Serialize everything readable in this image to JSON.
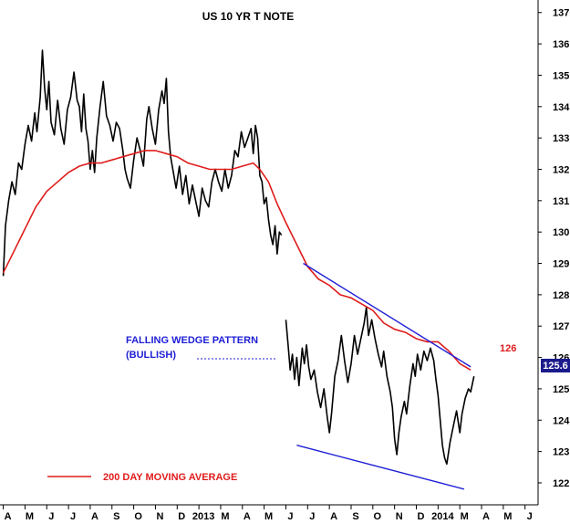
{
  "chart_data": {
    "type": "line",
    "title": "US 10 YR T NOTE",
    "y_ticks": [
      122,
      123,
      124,
      125,
      126,
      127,
      128,
      129,
      130,
      131,
      132,
      133,
      134,
      135,
      136,
      137
    ],
    "ylim": [
      121.3,
      137.4
    ],
    "x_ticks": [
      "A",
      "M",
      "J",
      "J",
      "A",
      "S",
      "O",
      "N",
      "D",
      "2013",
      "M",
      "A",
      "M",
      "J",
      "J",
      "A",
      "S",
      "O",
      "N",
      "D",
      "2014",
      "M",
      "A",
      "M",
      "J"
    ],
    "x_tick_values": [
      0,
      1,
      2,
      3,
      4,
      5,
      6,
      7,
      8,
      9,
      10,
      11,
      12,
      13,
      14,
      15,
      16,
      17,
      18,
      19,
      20,
      21,
      22,
      23,
      24
    ],
    "xlim": [
      -0.15,
      24.6
    ],
    "series": [
      {
        "role": "price",
        "color": "#000000",
        "segments": [
          [
            [
              0,
              128.6
            ],
            [
              0.1,
              130.2
            ],
            [
              0.25,
              131.0
            ],
            [
              0.4,
              131.6
            ],
            [
              0.55,
              131.2
            ],
            [
              0.7,
              132.2
            ],
            [
              0.85,
              132.0
            ],
            [
              1.0,
              132.8
            ],
            [
              1.15,
              133.4
            ],
            [
              1.3,
              132.9
            ],
            [
              1.45,
              133.8
            ],
            [
              1.55,
              133.2
            ],
            [
              1.7,
              134.3
            ],
            [
              1.8,
              135.8
            ],
            [
              1.9,
              134.6
            ],
            [
              2.0,
              133.9
            ],
            [
              2.1,
              134.8
            ],
            [
              2.2,
              133.5
            ],
            [
              2.35,
              133.1
            ],
            [
              2.5,
              134.2
            ],
            [
              2.65,
              133.3
            ],
            [
              2.8,
              132.8
            ],
            [
              2.95,
              133.9
            ],
            [
              3.1,
              134.3
            ],
            [
              3.25,
              135.1
            ],
            [
              3.4,
              134.2
            ],
            [
              3.5,
              134.0
            ],
            [
              3.6,
              133.2
            ],
            [
              3.7,
              134.4
            ],
            [
              3.8,
              133.3
            ],
            [
              3.9,
              132.9
            ],
            [
              4.0,
              132.0
            ],
            [
              4.1,
              132.6
            ],
            [
              4.2,
              131.9
            ],
            [
              4.3,
              133.0
            ],
            [
              4.45,
              134.0
            ],
            [
              4.6,
              134.8
            ],
            [
              4.75,
              133.7
            ],
            [
              4.9,
              133.4
            ],
            [
              5.05,
              132.9
            ],
            [
              5.2,
              133.5
            ],
            [
              5.35,
              133.3
            ],
            [
              5.5,
              132.6
            ],
            [
              5.6,
              132.0
            ],
            [
              5.7,
              131.7
            ],
            [
              5.85,
              131.4
            ],
            [
              6.0,
              132.3
            ],
            [
              6.15,
              133.0
            ],
            [
              6.3,
              132.6
            ],
            [
              6.45,
              132.1
            ],
            [
              6.6,
              133.6
            ],
            [
              6.7,
              134.0
            ],
            [
              6.85,
              133.3
            ],
            [
              7.0,
              132.8
            ],
            [
              7.15,
              133.9
            ],
            [
              7.3,
              134.5
            ],
            [
              7.4,
              134.1
            ],
            [
              7.5,
              134.9
            ],
            [
              7.6,
              133.2
            ],
            [
              7.7,
              132.4
            ],
            [
              7.8,
              132.0
            ],
            [
              7.95,
              131.4
            ],
            [
              8.1,
              132.1
            ],
            [
              8.25,
              131.2
            ],
            [
              8.4,
              131.8
            ],
            [
              8.55,
              130.9
            ],
            [
              8.7,
              131.5
            ],
            [
              8.85,
              131.0
            ],
            [
              9.0,
              130.5
            ],
            [
              9.15,
              131.4
            ],
            [
              9.3,
              131.0
            ],
            [
              9.45,
              130.8
            ],
            [
              9.6,
              131.6
            ],
            [
              9.75,
              132.0
            ],
            [
              9.9,
              131.6
            ],
            [
              10.05,
              131.3
            ],
            [
              10.2,
              132.0
            ],
            [
              10.35,
              131.4
            ],
            [
              10.5,
              131.8
            ],
            [
              10.65,
              132.6
            ],
            [
              10.8,
              132.4
            ],
            [
              10.95,
              133.2
            ],
            [
              11.1,
              132.7
            ],
            [
              11.25,
              133.0
            ],
            [
              11.4,
              133.3
            ],
            [
              11.5,
              132.5
            ],
            [
              11.6,
              133.4
            ],
            [
              11.7,
              133.0
            ],
            [
              11.8,
              131.8
            ],
            [
              11.9,
              131.6
            ],
            [
              12.0,
              130.9
            ],
            [
              12.1,
              131.1
            ],
            [
              12.2,
              130.4
            ],
            [
              12.3,
              129.9
            ],
            [
              12.4,
              129.6
            ],
            [
              12.5,
              130.2
            ],
            [
              12.6,
              129.3
            ],
            [
              12.7,
              130.0
            ],
            [
              12.8,
              129.9
            ]
          ],
          [
            [
              13.0,
              127.2
            ],
            [
              13.1,
              126.4
            ],
            [
              13.2,
              125.6
            ],
            [
              13.3,
              126.1
            ],
            [
              13.4,
              125.3
            ],
            [
              13.5,
              126.0
            ],
            [
              13.6,
              125.1
            ],
            [
              13.75,
              126.3
            ],
            [
              13.85,
              125.8
            ],
            [
              13.95,
              126.4
            ],
            [
              14.05,
              125.7
            ],
            [
              14.15,
              125.3
            ],
            [
              14.3,
              125.6
            ],
            [
              14.45,
              124.9
            ],
            [
              14.6,
              124.4
            ],
            [
              14.75,
              125.0
            ],
            [
              14.9,
              124.1
            ],
            [
              15.0,
              123.6
            ],
            [
              15.1,
              124.2
            ],
            [
              15.25,
              125.4
            ],
            [
              15.4,
              125.9
            ],
            [
              15.55,
              126.7
            ],
            [
              15.7,
              125.9
            ],
            [
              15.85,
              125.2
            ],
            [
              16.0,
              125.8
            ],
            [
              16.15,
              126.7
            ],
            [
              16.3,
              126.1
            ],
            [
              16.45,
              126.6
            ],
            [
              16.6,
              127.1
            ],
            [
              16.7,
              127.6
            ],
            [
              16.8,
              126.7
            ],
            [
              16.95,
              127.2
            ],
            [
              17.1,
              126.6
            ],
            [
              17.25,
              126.1
            ],
            [
              17.4,
              125.7
            ],
            [
              17.5,
              126.2
            ],
            [
              17.65,
              125.4
            ],
            [
              17.8,
              124.9
            ],
            [
              17.9,
              124.4
            ],
            [
              18.0,
              123.4
            ],
            [
              18.1,
              122.9
            ],
            [
              18.2,
              123.6
            ],
            [
              18.3,
              124.1
            ],
            [
              18.45,
              124.6
            ],
            [
              18.55,
              124.2
            ],
            [
              18.7,
              125.1
            ],
            [
              18.85,
              125.8
            ],
            [
              18.95,
              125.4
            ],
            [
              19.05,
              126.1
            ],
            [
              19.2,
              125.6
            ],
            [
              19.35,
              126.2
            ],
            [
              19.5,
              125.9
            ],
            [
              19.65,
              126.3
            ],
            [
              19.8,
              125.9
            ],
            [
              19.9,
              125.3
            ],
            [
              20.0,
              124.8
            ],
            [
              20.1,
              124.0
            ],
            [
              20.2,
              123.2
            ],
            [
              20.3,
              122.8
            ],
            [
              20.4,
              122.6
            ],
            [
              20.55,
              123.3
            ],
            [
              20.7,
              123.8
            ],
            [
              20.85,
              124.3
            ],
            [
              21.0,
              123.6
            ],
            [
              21.1,
              124.2
            ],
            [
              21.25,
              124.7
            ],
            [
              21.4,
              125.0
            ],
            [
              21.5,
              124.9
            ],
            [
              21.65,
              125.4
            ]
          ]
        ]
      },
      {
        "role": "moving-average",
        "name": "200 DAY MOVING AVERAGE",
        "color": "#e01c1c",
        "points": [
          [
            0,
            128.7
          ],
          [
            0.5,
            129.4
          ],
          [
            1.0,
            130.1
          ],
          [
            1.5,
            130.8
          ],
          [
            2.0,
            131.3
          ],
          [
            2.5,
            131.6
          ],
          [
            3.0,
            131.9
          ],
          [
            3.5,
            132.1
          ],
          [
            4.0,
            132.2
          ],
          [
            4.5,
            132.2
          ],
          [
            5.0,
            132.3
          ],
          [
            5.5,
            132.4
          ],
          [
            6.0,
            132.5
          ],
          [
            6.5,
            132.6
          ],
          [
            7.0,
            132.6
          ],
          [
            7.5,
            132.5
          ],
          [
            8.0,
            132.4
          ],
          [
            8.5,
            132.2
          ],
          [
            9.0,
            132.1
          ],
          [
            9.5,
            132.0
          ],
          [
            10.0,
            132.0
          ],
          [
            10.5,
            132.0
          ],
          [
            11.0,
            132.1
          ],
          [
            11.5,
            132.2
          ],
          [
            11.8,
            132.0
          ],
          [
            12.2,
            131.6
          ],
          [
            12.6,
            130.9
          ],
          [
            13.0,
            130.3
          ],
          [
            13.5,
            129.6
          ],
          [
            14.0,
            128.9
          ],
          [
            14.5,
            128.5
          ],
          [
            15.0,
            128.3
          ],
          [
            15.5,
            128.0
          ],
          [
            16.0,
            127.9
          ],
          [
            16.5,
            127.7
          ],
          [
            17.0,
            127.5
          ],
          [
            17.5,
            127.1
          ],
          [
            18.0,
            126.9
          ],
          [
            18.5,
            126.8
          ],
          [
            19.0,
            126.6
          ],
          [
            19.5,
            126.5
          ],
          [
            20.0,
            126.5
          ],
          [
            20.5,
            126.2
          ],
          [
            21.0,
            125.8
          ],
          [
            21.5,
            125.6
          ]
        ]
      }
    ],
    "trendlines": [
      {
        "name": "upper",
        "color": "#1e1ed6",
        "points": [
          [
            13.8,
            129.0
          ],
          [
            21.5,
            125.7
          ]
        ]
      },
      {
        "name": "lower",
        "color": "#1e1ed6",
        "points": [
          [
            13.5,
            123.2
          ],
          [
            21.2,
            121.8
          ]
        ]
      }
    ],
    "annotations": {
      "pattern_line1": "FALLING WEDGE PATTERN",
      "pattern_line2": "(BULLISH)",
      "target_label": "126",
      "last_price": "125.6",
      "legend_label": "200 DAY MOVING AVERAGE"
    },
    "grid": false,
    "legend": "bottom-left"
  }
}
